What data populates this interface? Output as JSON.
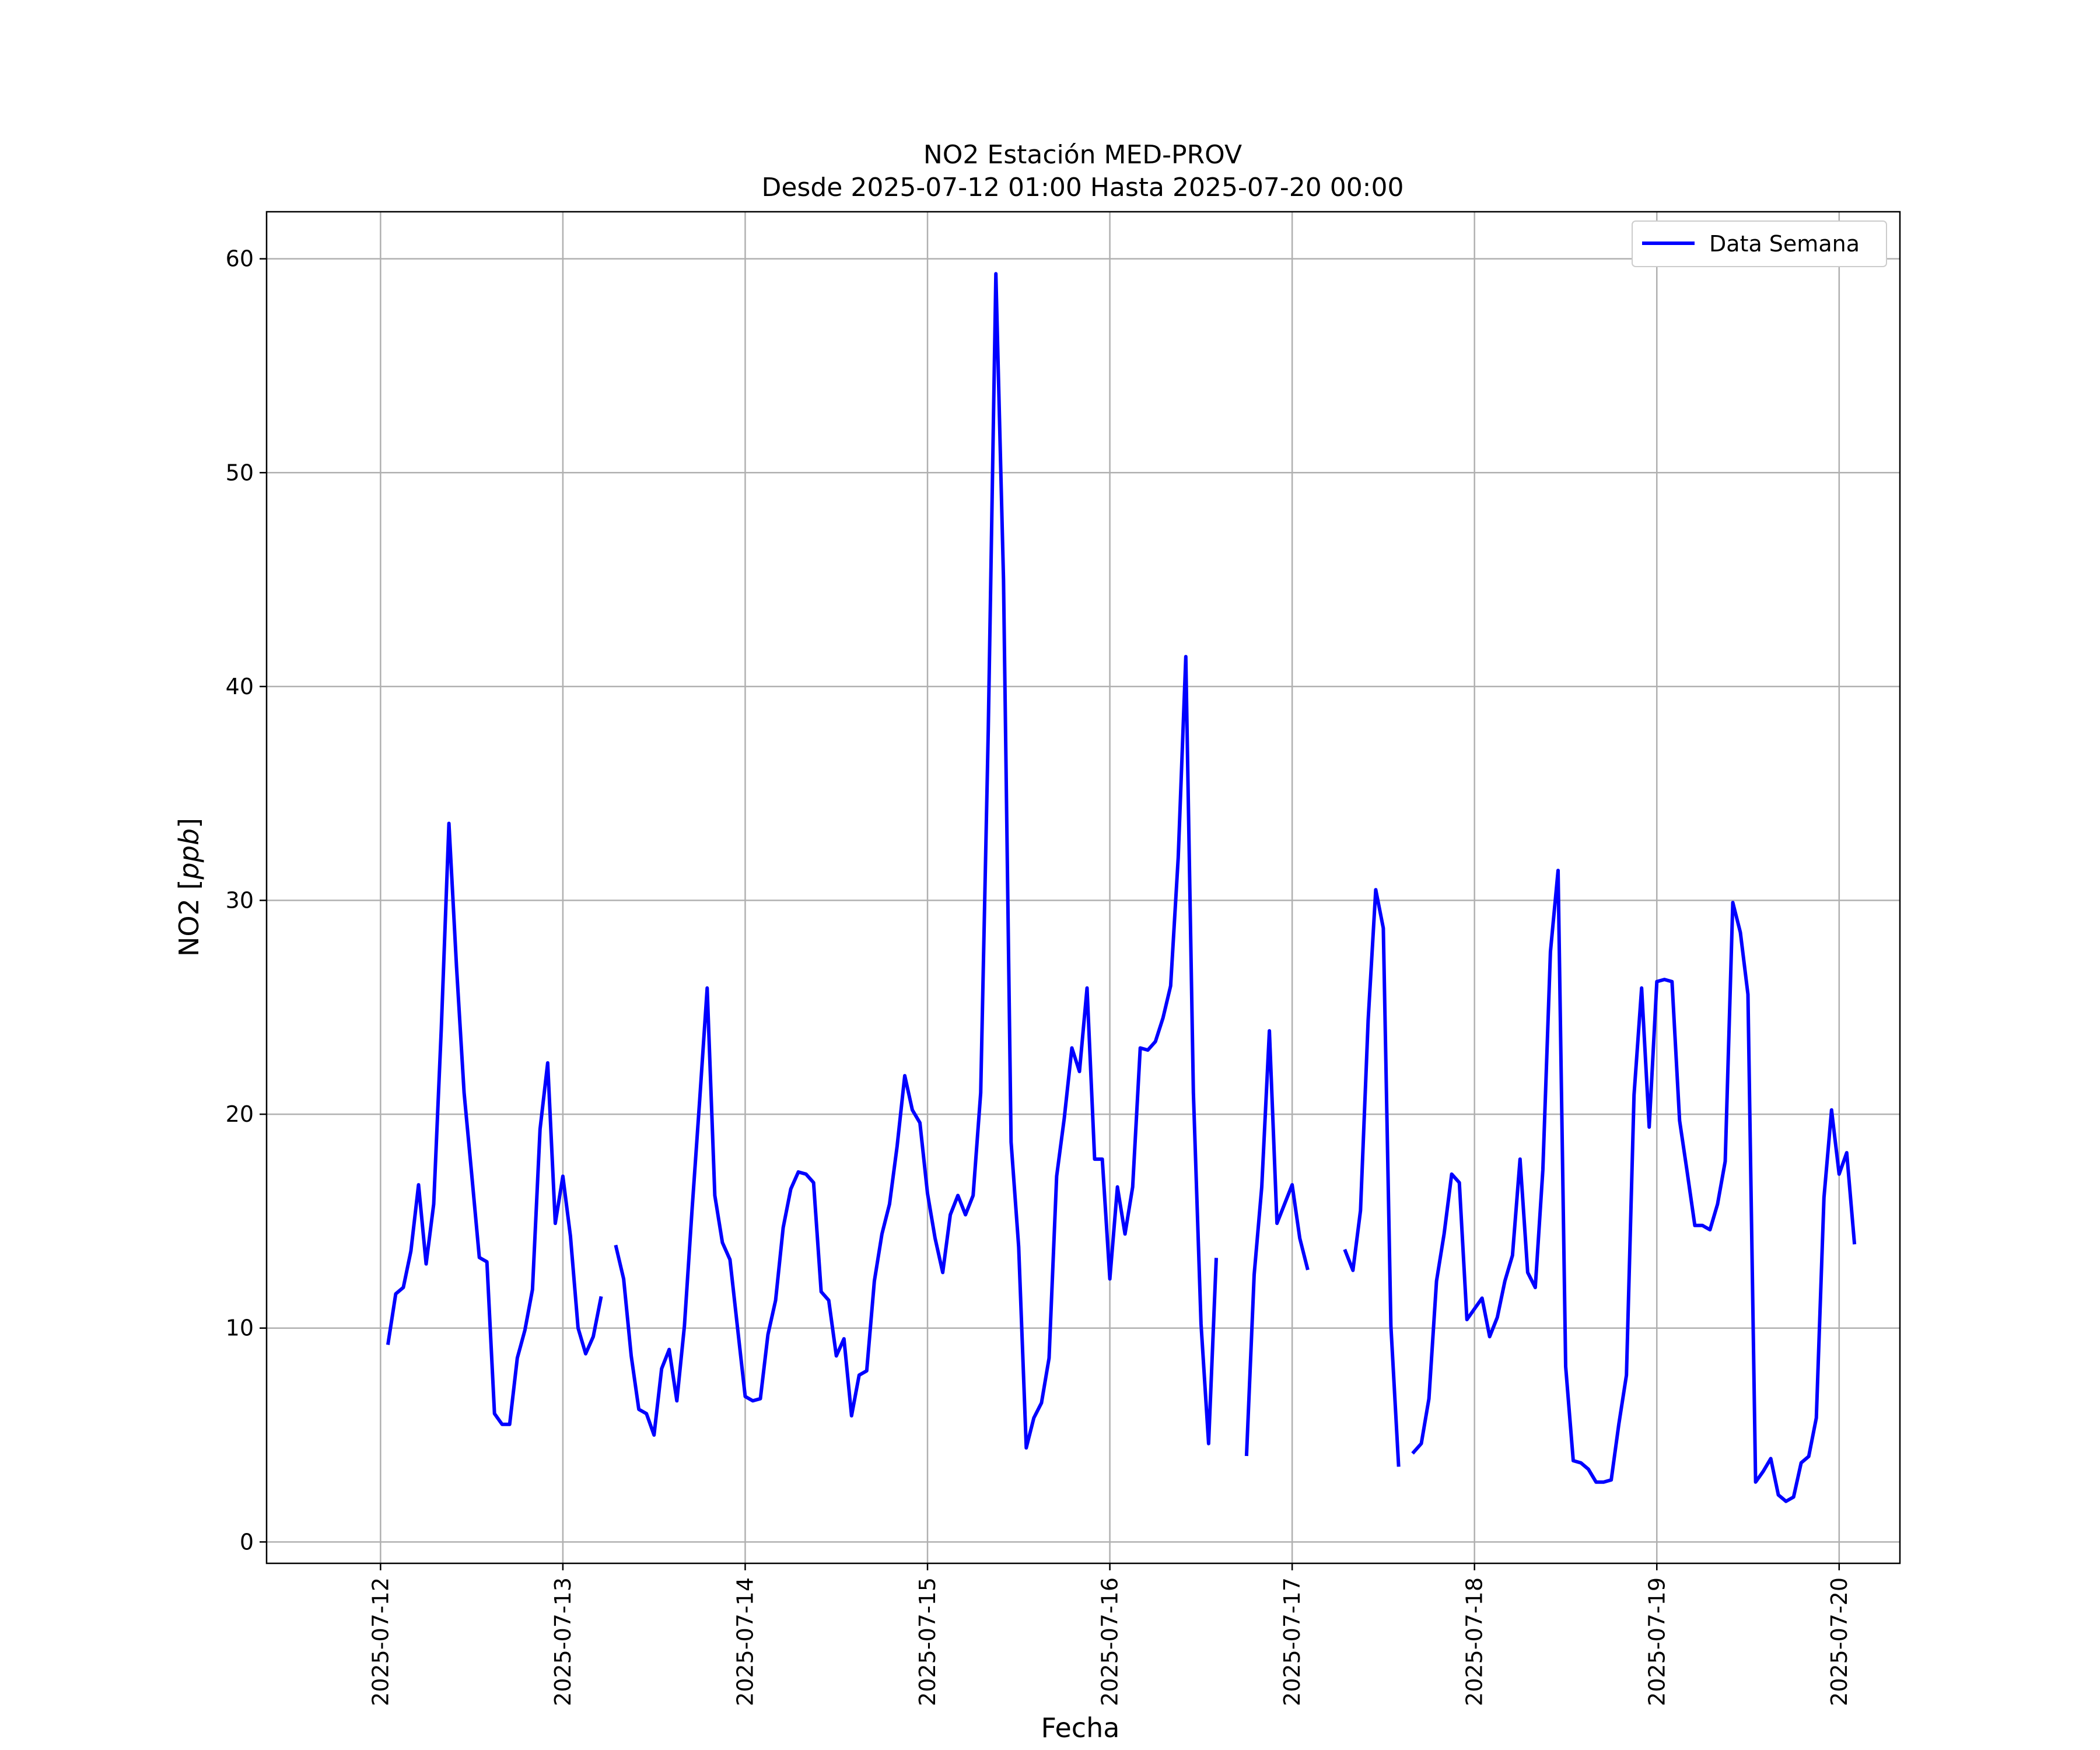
{
  "chart_data": {
    "type": "line",
    "title": "NO2 Estación MED-PROV",
    "subtitle": "Desde 2025-07-12 01:00 Hasta 2025-07-20 00:00",
    "xlabel": "Fecha",
    "ylabel_main": "NO2 [",
    "ylabel_unit": "ppb",
    "ylabel_close": "]",
    "xlim": [
      "2025-07-11T09:00",
      "2025-07-20T08:00"
    ],
    "ylim": [
      -1,
      62.2
    ],
    "grid": true,
    "legend_position": "upper-right",
    "x_ticks": [
      "2025-07-12",
      "2025-07-13",
      "2025-07-14",
      "2025-07-15",
      "2025-07-16",
      "2025-07-17",
      "2025-07-18",
      "2025-07-19",
      "2025-07-20"
    ],
    "y_ticks": [
      0,
      10,
      20,
      30,
      40,
      50,
      60
    ],
    "x_start": "2025-07-12T01:00",
    "x_step_hours": 1,
    "series": [
      {
        "name": "Data Semana",
        "color": "#0000ff",
        "values": [
          9.3,
          11.6,
          11.9,
          13.6,
          16.7,
          13.0,
          15.8,
          24.0,
          33.6,
          26.9,
          21.0,
          17.2,
          13.3,
          13.1,
          6.0,
          5.5,
          5.5,
          8.6,
          9.9,
          11.8,
          19.3,
          22.4,
          14.9,
          17.1,
          14.3,
          10.0,
          8.8,
          9.6,
          11.4,
          null,
          13.8,
          12.3,
          8.7,
          6.2,
          6.0,
          5.0,
          8.1,
          9.0,
          6.6,
          10.1,
          15.5,
          20.6,
          25.9,
          16.2,
          14.0,
          13.2,
          10.0,
          6.8,
          6.6,
          6.7,
          9.7,
          11.3,
          14.7,
          16.5,
          17.3,
          17.2,
          16.8,
          11.7,
          11.3,
          8.7,
          9.5,
          5.9,
          7.8,
          8.0,
          12.2,
          14.4,
          15.8,
          18.5,
          21.8,
          20.2,
          19.6,
          16.3,
          14.2,
          12.6,
          15.3,
          16.2,
          15.3,
          16.2,
          21.0,
          38.0,
          59.3,
          45.0,
          18.7,
          13.8,
          4.4,
          5.8,
          6.5,
          8.6,
          17.1,
          19.8,
          23.1,
          22.0,
          25.9,
          17.9,
          17.9,
          12.3,
          16.6,
          14.4,
          16.6,
          23.1,
          23.0,
          23.4,
          24.5,
          26.0,
          32.0,
          41.4,
          21.0,
          10.2,
          4.6,
          13.2,
          null,
          null,
          null,
          4.1,
          12.5,
          16.6,
          23.9,
          14.9,
          15.8,
          16.7,
          14.2,
          12.8,
          null,
          null,
          null,
          null,
          13.6,
          12.7,
          15.5,
          24.4,
          30.5,
          28.7,
          10.1,
          3.6,
          null,
          4.2,
          4.6,
          6.7,
          12.2,
          14.4,
          17.2,
          16.8,
          10.4,
          10.9,
          11.4,
          9.6,
          10.5,
          12.2,
          13.4,
          17.9,
          12.6,
          11.9,
          17.4,
          27.6,
          31.4,
          8.2,
          3.8,
          3.7,
          3.4,
          2.8,
          2.8,
          2.9,
          5.5,
          7.8,
          20.9,
          25.9,
          19.4,
          26.2,
          26.3,
          26.2,
          19.7,
          17.3,
          14.8,
          14.8,
          14.6,
          15.8,
          17.8,
          29.9,
          28.5,
          25.6,
          2.8,
          3.3,
          3.9,
          2.2,
          1.9,
          2.1,
          3.7,
          4.0,
          5.8,
          16.1,
          20.2,
          17.2,
          18.2,
          14.0
        ]
      }
    ]
  }
}
